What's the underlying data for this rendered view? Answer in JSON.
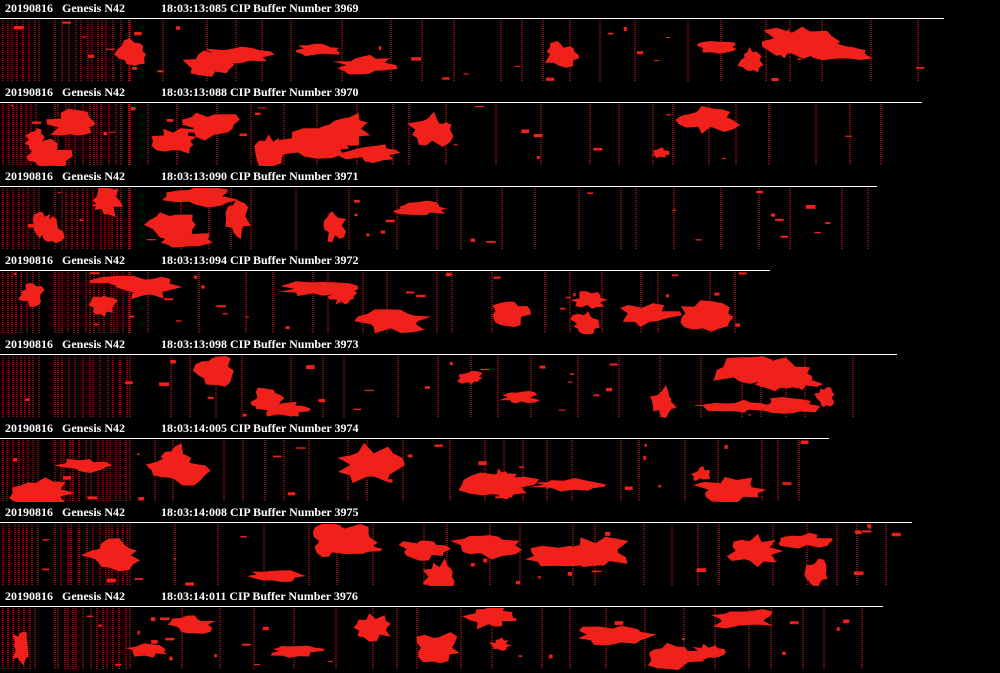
{
  "buffers": [
    {
      "date": "20190816",
      "aircraft": "Genesis N42",
      "info": "18:03:13:085 CIP Buffer Number 3969"
    },
    {
      "date": "20190816",
      "aircraft": "Genesis N42",
      "info": "18:03:13:088 CIP Buffer Number 3970"
    },
    {
      "date": "20190816",
      "aircraft": "Genesis N42",
      "info": "18:03:13:090 CIP Buffer Number 3971"
    },
    {
      "date": "20190816",
      "aircraft": "Genesis N42",
      "info": "18:03:13:094 CIP Buffer Number 3972"
    },
    {
      "date": "20190816",
      "aircraft": "Genesis N42",
      "info": "18:03:13:098 CIP Buffer Number 3973"
    },
    {
      "date": "20190816",
      "aircraft": "Genesis N42",
      "info": "18:03:14:005 CIP Buffer Number 3974"
    },
    {
      "date": "20190816",
      "aircraft": "Genesis N42",
      "info": "18:03:14:008 CIP Buffer Number 3975"
    },
    {
      "date": "20190816",
      "aircraft": "Genesis N42",
      "info": "18:03:14:011 CIP Buffer Number 3976"
    }
  ]
}
